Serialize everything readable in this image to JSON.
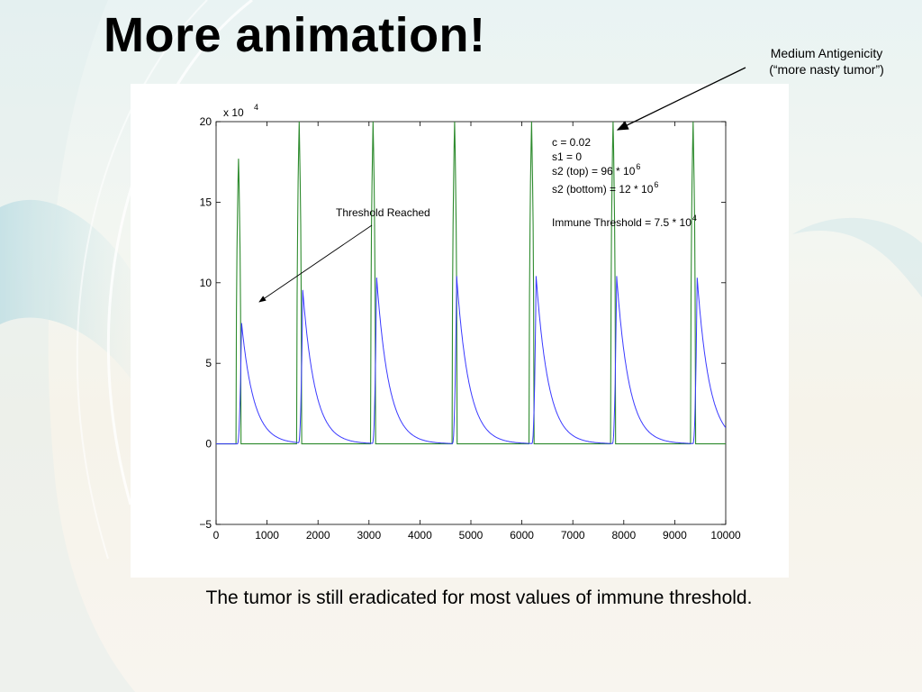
{
  "slide": {
    "title": "More animation!",
    "caption": "The tumor is still eradicated for most values of immune threshold.",
    "annotation_line1": "Medium Antigenicity",
    "annotation_line2": "(“more nasty tumor”)"
  },
  "chart_data": {
    "type": "line",
    "title": "",
    "xlabel": "",
    "ylabel": "",
    "y_multiplier_label": "x 10",
    "y_multiplier_exponent": "4",
    "xlim": [
      0,
      10000
    ],
    "ylim": [
      -5,
      20
    ],
    "x_ticks": [
      0,
      1000,
      2000,
      3000,
      4000,
      5000,
      6000,
      7000,
      8000,
      9000,
      10000
    ],
    "y_ticks": [
      -5,
      0,
      5,
      10,
      15,
      20
    ],
    "y_tick_labels": [
      "−5",
      "0",
      "5",
      "10",
      "15",
      "20"
    ],
    "grid": false,
    "series": [
      {
        "color": "#2e8b2e",
        "description": "sharp spikes",
        "peaks": [
          {
            "x": 440,
            "y": 17.7
          },
          {
            "x": 1630,
            "y": 20
          },
          {
            "x": 3080,
            "y": 20
          },
          {
            "x": 4680,
            "y": 20
          },
          {
            "x": 6190,
            "y": 20
          },
          {
            "x": 7790,
            "y": 20
          },
          {
            "x": 9360,
            "y": 20
          }
        ],
        "baseline": 0
      },
      {
        "color": "#3a3aff",
        "description": "decaying peaks",
        "peaks": [
          {
            "x": 500,
            "y": 7.5
          },
          {
            "x": 1700,
            "y": 9.5
          },
          {
            "x": 3150,
            "y": 10.3
          },
          {
            "x": 4720,
            "y": 10.4
          },
          {
            "x": 6280,
            "y": 10.4
          },
          {
            "x": 7860,
            "y": 10.4
          },
          {
            "x": 9440,
            "y": 10.3
          }
        ],
        "end_value": 1.1
      }
    ],
    "annotations": {
      "threshold_reached": "Threshold Reached",
      "params": [
        {
          "text": "c = 0.02",
          "sup": ""
        },
        {
          "text": "s1 = 0",
          "sup": ""
        },
        {
          "text": "s2 (top) = 96 * 10",
          "sup": "6"
        },
        {
          "text": "s2 (bottom) =  12 * 10",
          "sup": "6"
        },
        {
          "text": "Immune Threshold = 7.5 * 10",
          "sup": "4"
        }
      ]
    }
  }
}
